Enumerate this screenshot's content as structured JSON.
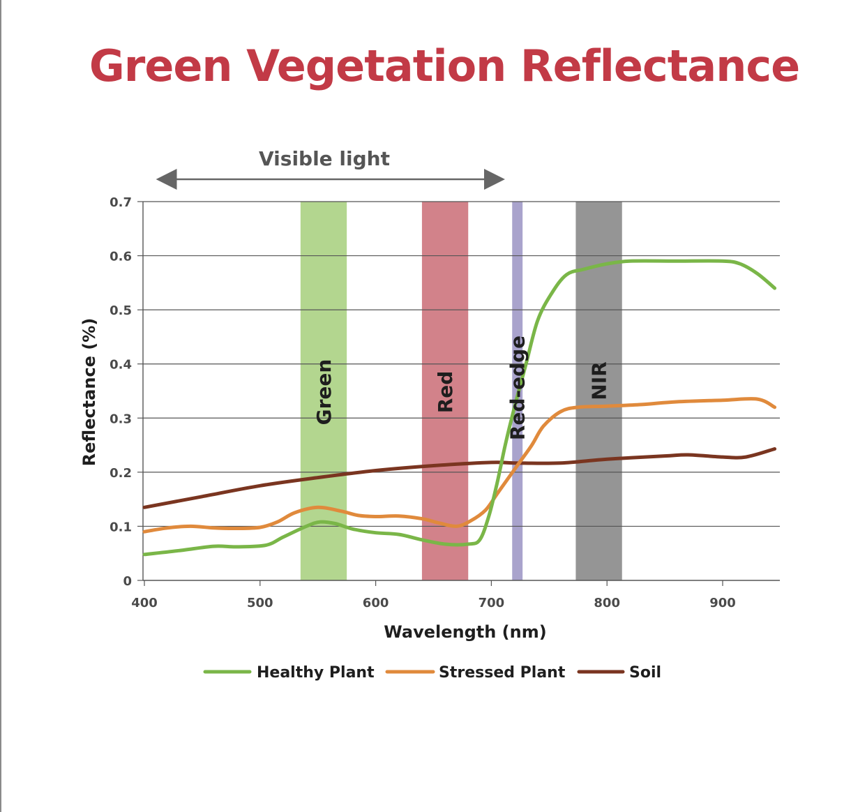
{
  "page": {
    "title": "Green Vegetation Reflectance"
  },
  "chart_data": {
    "type": "line",
    "title": "Green Vegetation Reflectance",
    "xlabel": "Wavelength (nm)",
    "ylabel": "Reflectance (%)",
    "xlim": [
      400,
      950
    ],
    "ylim": [
      0,
      0.7
    ],
    "x_ticks": [
      {
        "value": 400,
        "label": "400"
      },
      {
        "value": 500,
        "label": "500"
      },
      {
        "value": 600,
        "label": "600"
      },
      {
        "value": 700,
        "label": "700"
      },
      {
        "value": 800,
        "label": "800"
      },
      {
        "value": 900,
        "label": "900"
      }
    ],
    "y_ticks": [
      {
        "value": 0,
        "label": "0"
      },
      {
        "value": 0.1,
        "label": "0.1"
      },
      {
        "value": 0.2,
        "label": "0.2"
      },
      {
        "value": 0.3,
        "label": "0.3"
      },
      {
        "value": 0.4,
        "label": "0.4"
      },
      {
        "value": 0.5,
        "label": "0.5"
      },
      {
        "value": 0.6,
        "label": "0.6"
      },
      {
        "value": 0.7,
        "label": "0.7"
      }
    ],
    "grid": "horizontal",
    "legend_position": "bottom",
    "visible_light": {
      "label": "Visible light",
      "from": 407,
      "to": 710
    },
    "bands": [
      {
        "name": "Green",
        "from": 535,
        "to": 575,
        "color": "#b3d68f"
      },
      {
        "name": "Red",
        "from": 640,
        "to": 680,
        "color": "#d2828a"
      },
      {
        "name": "Red-edge",
        "from": 718,
        "to": 727,
        "color": "#a9a3cc"
      },
      {
        "name": "NIR",
        "from": 773,
        "to": 813,
        "color": "#959595"
      }
    ],
    "series": [
      {
        "name": "Healthy Plant",
        "color": "#7ab648",
        "points": [
          [
            400,
            0.048
          ],
          [
            430,
            0.055
          ],
          [
            460,
            0.063
          ],
          [
            480,
            0.062
          ],
          [
            505,
            0.065
          ],
          [
            520,
            0.08
          ],
          [
            540,
            0.1
          ],
          [
            552,
            0.108
          ],
          [
            565,
            0.105
          ],
          [
            580,
            0.095
          ],
          [
            600,
            0.088
          ],
          [
            620,
            0.085
          ],
          [
            640,
            0.075
          ],
          [
            660,
            0.067
          ],
          [
            680,
            0.067
          ],
          [
            690,
            0.075
          ],
          [
            698,
            0.12
          ],
          [
            705,
            0.18
          ],
          [
            712,
            0.25
          ],
          [
            720,
            0.32
          ],
          [
            730,
            0.4
          ],
          [
            740,
            0.48
          ],
          [
            752,
            0.53
          ],
          [
            765,
            0.565
          ],
          [
            780,
            0.575
          ],
          [
            800,
            0.585
          ],
          [
            820,
            0.59
          ],
          [
            860,
            0.59
          ],
          [
            900,
            0.59
          ],
          [
            915,
            0.585
          ],
          [
            930,
            0.567
          ],
          [
            945,
            0.54
          ]
        ]
      },
      {
        "name": "Stressed Plant",
        "color": "#e08a3c",
        "points": [
          [
            400,
            0.09
          ],
          [
            420,
            0.097
          ],
          [
            440,
            0.1
          ],
          [
            460,
            0.097
          ],
          [
            480,
            0.096
          ],
          [
            500,
            0.098
          ],
          [
            515,
            0.108
          ],
          [
            530,
            0.125
          ],
          [
            550,
            0.135
          ],
          [
            570,
            0.128
          ],
          [
            585,
            0.12
          ],
          [
            600,
            0.118
          ],
          [
            620,
            0.119
          ],
          [
            640,
            0.114
          ],
          [
            655,
            0.106
          ],
          [
            670,
            0.1
          ],
          [
            682,
            0.11
          ],
          [
            695,
            0.13
          ],
          [
            705,
            0.16
          ],
          [
            715,
            0.19
          ],
          [
            725,
            0.22
          ],
          [
            735,
            0.25
          ],
          [
            745,
            0.285
          ],
          [
            760,
            0.312
          ],
          [
            775,
            0.32
          ],
          [
            800,
            0.322
          ],
          [
            830,
            0.325
          ],
          [
            860,
            0.33
          ],
          [
            900,
            0.333
          ],
          [
            930,
            0.335
          ],
          [
            945,
            0.32
          ]
        ]
      },
      {
        "name": "Soil",
        "color": "#7a3520",
        "points": [
          [
            400,
            0.135
          ],
          [
            450,
            0.155
          ],
          [
            500,
            0.175
          ],
          [
            550,
            0.19
          ],
          [
            600,
            0.203
          ],
          [
            650,
            0.212
          ],
          [
            700,
            0.218
          ],
          [
            720,
            0.217
          ],
          [
            760,
            0.217
          ],
          [
            800,
            0.224
          ],
          [
            850,
            0.23
          ],
          [
            870,
            0.232
          ],
          [
            900,
            0.228
          ],
          [
            920,
            0.228
          ],
          [
            945,
            0.243
          ]
        ]
      }
    ]
  }
}
